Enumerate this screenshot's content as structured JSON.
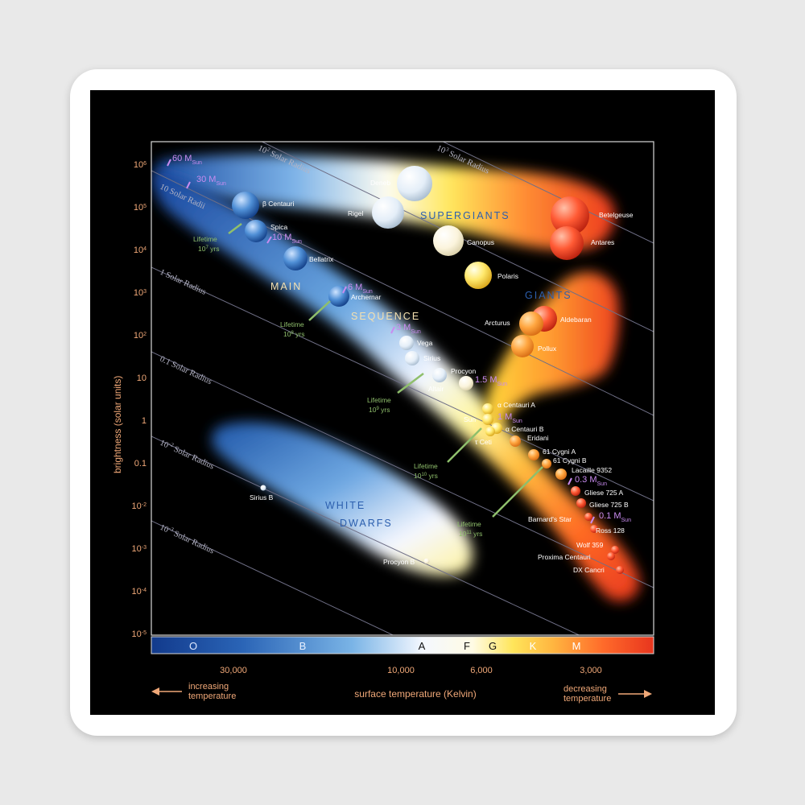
{
  "diagram": {
    "y_axis_label": "brightness (solar units)",
    "x_axis_label": "surface temperature (Kelvin)",
    "left_arrow_label": [
      "increasing",
      "temperature"
    ],
    "right_arrow_label": [
      "decreasing",
      "temperature"
    ],
    "brightness_ticks": [
      {
        "label": "10",
        "exp": "6"
      },
      {
        "label": "10",
        "exp": "5"
      },
      {
        "label": "10",
        "exp": "4"
      },
      {
        "label": "10",
        "exp": "3"
      },
      {
        "label": "10",
        "exp": "2"
      },
      {
        "label": "10",
        "exp": ""
      },
      {
        "label": "1",
        "exp": ""
      },
      {
        "label": "0.1",
        "exp": ""
      },
      {
        "label": "10",
        "exp": "-2"
      },
      {
        "label": "10",
        "exp": "-3"
      },
      {
        "label": "10",
        "exp": "-4"
      },
      {
        "label": "10",
        "exp": "-5"
      }
    ],
    "temperature_ticks": [
      "30,000",
      "10,000",
      "6,000",
      "3,000"
    ],
    "spectral_classes": [
      "O",
      "B",
      "A",
      "F",
      "G",
      "K",
      "M"
    ],
    "radius_lines": [
      {
        "label": "10",
        "exp": "3",
        "suffix": " Solar Radius"
      },
      {
        "label": "10",
        "exp": "2",
        "suffix": " Solar Radius"
      },
      {
        "label": "10 Solar Radii",
        "exp": "",
        "suffix": ""
      },
      {
        "label": "1 Solar Radius",
        "exp": "",
        "suffix": ""
      },
      {
        "label": "0.1 Solar Radius",
        "exp": "",
        "suffix": ""
      },
      {
        "label": "10",
        "exp": "-2",
        "suffix": " Solar Radius"
      },
      {
        "label": "10",
        "exp": "-3",
        "suffix": " Solar Radius"
      }
    ],
    "regions": [
      "SUPERGIANTS",
      "GIANTS",
      "MAIN",
      "SEQUENCE",
      "WHITE",
      "DWARFS"
    ],
    "stars": [
      "Deneb",
      "Rigel",
      "Canopus",
      "Polaris",
      "Betelgeuse",
      "Antares",
      "Arcturus",
      "Aldebaran",
      "Pollux",
      "β Centauri",
      "Spica",
      "Bellatrix",
      "Archernar",
      "Vega",
      "Sirius",
      "Procyon",
      "Altair",
      "α Centauri A",
      "Sun",
      "α Centauri B",
      "τ Ceti",
      "Eridani",
      "61 Cygni A",
      "61 Cygni B",
      "Lacaille 9352",
      "Gliese 725 A",
      "Gliese 725 B",
      "Barnard's Star",
      "Ross 128",
      "Wolf 359",
      "Proxima Centauri",
      "DX Cancri",
      "Sirius B",
      "Procyon B"
    ],
    "masses": [
      {
        "value": "60 M",
        "sub": "Sun"
      },
      {
        "value": "30 M",
        "sub": "Sun"
      },
      {
        "value": "10 M",
        "sub": "Sun"
      },
      {
        "value": "6 M",
        "sub": "Sun"
      },
      {
        "value": "3 M",
        "sub": "Sun"
      },
      {
        "value": "1.5 M",
        "sub": "Sun"
      },
      {
        "value": "1 M",
        "sub": "Sun"
      },
      {
        "value": "0.3 M",
        "sub": "Sun"
      },
      {
        "value": "0.1 M",
        "sub": "Sun"
      }
    ],
    "lifetimes": [
      {
        "label": "Lifetime",
        "value": "10",
        "exp": "7",
        "unit": " yrs"
      },
      {
        "label": "Lifetime",
        "value": "10",
        "exp": "8",
        "unit": " yrs"
      },
      {
        "label": "Lifetime",
        "value": "10",
        "exp": "9",
        "unit": " yrs"
      },
      {
        "label": "Lifetime",
        "value": "10",
        "exp": "10",
        "unit": " yrs"
      },
      {
        "label": "Lifetime",
        "value": "10",
        "exp": "11",
        "unit": " yrs"
      }
    ]
  }
}
